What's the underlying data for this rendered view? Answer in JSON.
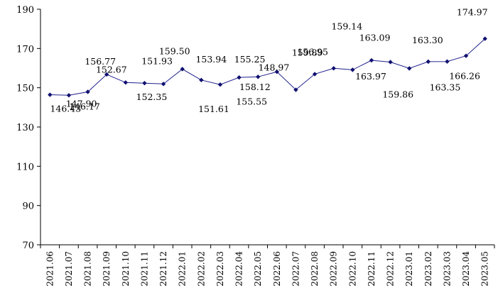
{
  "chart_data": {
    "type": "line",
    "title": "",
    "xlabel": "",
    "ylabel": "",
    "ylim": [
      70,
      190
    ],
    "yticks": [
      70,
      90,
      110,
      130,
      150,
      170,
      190
    ],
    "grid": false,
    "legend": "none",
    "line_color": "#1f1f8c",
    "categories": [
      "2021.06",
      "2021.07",
      "2021.08",
      "2021.09",
      "2021.10",
      "2021.11",
      "2021.12",
      "2022.01",
      "2022.02",
      "2022.03",
      "2022.04",
      "2022.05",
      "2022.06",
      "2022.07",
      "2022.08",
      "2022.09",
      "2022.10",
      "2022.11",
      "2022.12",
      "2023.01",
      "2023.02",
      "2023.03",
      "2023.04",
      "2023.05"
    ],
    "series": [
      {
        "values": [
          146.43,
          146.17,
          147.9,
          156.77,
          152.67,
          152.35,
          151.93,
          159.5,
          153.94,
          151.61,
          155.25,
          155.55,
          158.12,
          148.97,
          156.95,
          159.89,
          159.14,
          163.97,
          163.09,
          159.86,
          163.3,
          163.35,
          166.26,
          174.97
        ],
        "labels": [
          "146.43",
          "146.17",
          "147.90",
          "156.77",
          "152.67",
          "152.35",
          "151.93",
          "159.50",
          "153.94",
          "151.61",
          "155.25",
          "155.55",
          "158.12",
          "148.97",
          "156.95",
          "159.89",
          "159.14",
          "163.97",
          "163.09",
          "159.86",
          "163.30",
          "163.35",
          "166.26",
          "174.97"
        ]
      }
    ]
  }
}
